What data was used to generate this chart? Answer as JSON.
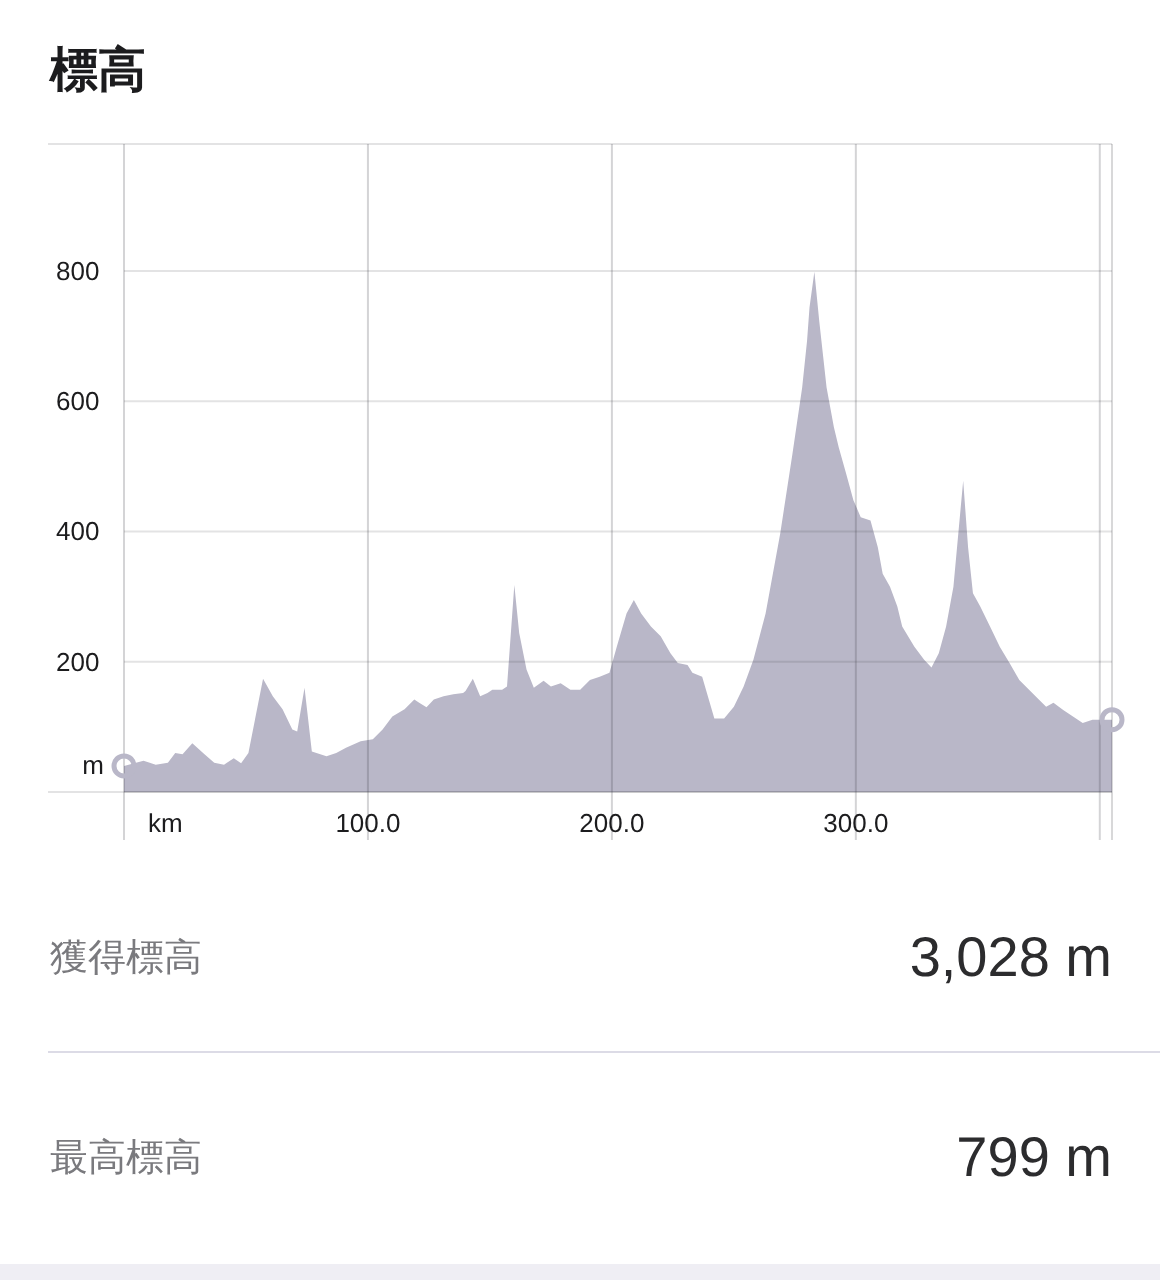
{
  "chart_data": [
    {
      "type": "area",
      "title": "標高",
      "xlabel": "km",
      "ylabel": "m",
      "series": [
        {
          "type": "area",
          "color": "#b9b7c8",
          "x": [
            0,
            8,
            13,
            18,
            21,
            24,
            28,
            33,
            37,
            41,
            45,
            48,
            51,
            57,
            61,
            65,
            69,
            71,
            74,
            77,
            83,
            87,
            91,
            97,
            102,
            106,
            110,
            115,
            119,
            121,
            124,
            127,
            131,
            135,
            139,
            140,
            143,
            146,
            149,
            151,
            155,
            157,
            160,
            162,
            165,
            168,
            172,
            175,
            179,
            183,
            187,
            191,
            195,
            199,
            202,
            206,
            209,
            212,
            216,
            220,
            224,
            227,
            231,
            233,
            237,
            242,
            246,
            250,
            254,
            258,
            263,
            269,
            274,
            278,
            280,
            281,
            283,
            285,
            288,
            291,
            293,
            296,
            299,
            302,
            306,
            309,
            311,
            314,
            317,
            319,
            324,
            328,
            331,
            334,
            337,
            340,
            342,
            344,
            346,
            348,
            351,
            355,
            359,
            363,
            367,
            371,
            375,
            378,
            381,
            385,
            389,
            393,
            397,
            405
          ],
          "values": [
            40,
            48,
            42,
            45,
            60,
            58,
            75,
            58,
            45,
            42,
            52,
            44,
            60,
            174,
            147,
            127,
            96,
            93,
            160,
            62,
            55,
            60,
            68,
            78,
            81,
            96,
            116,
            127,
            142,
            137,
            130,
            142,
            147,
            150,
            152,
            155,
            174,
            147,
            152,
            157,
            157,
            162,
            318,
            244,
            188,
            160,
            171,
            162,
            167,
            157,
            157,
            172,
            177,
            183,
            223,
            274,
            295,
            274,
            254,
            239,
            213,
            198,
            195,
            183,
            177,
            113,
            113,
            131,
            162,
            203,
            274,
            397,
            519,
            621,
            693,
            744,
            799,
            723,
            621,
            560,
            529,
            489,
            448,
            422,
            417,
            376,
            335,
            315,
            285,
            254,
            223,
            203,
            191,
            213,
            254,
            315,
            397,
            478,
            376,
            305,
            285,
            254,
            223,
            198,
            172,
            157,
            142,
            131,
            137,
            126,
            116,
            106,
            111,
            111
          ]
        },
        {
          "type": "scatter",
          "color": "#b9b7c8",
          "marker": "circle",
          "x": [
            0,
            405
          ],
          "values": [
            40,
            111
          ]
        }
      ],
      "xlim": [
        0,
        405
      ],
      "ylim": [
        0,
        995
      ],
      "xticks": [
        {
          "value": 0,
          "label": null
        },
        {
          "value": 100,
          "label": "100.0"
        },
        {
          "value": 200,
          "label": "200.0"
        },
        {
          "value": 300,
          "label": "300.0"
        },
        {
          "value": 400,
          "label": null
        }
      ],
      "yticks": [
        {
          "value": 0,
          "label": null
        },
        200,
        400,
        600,
        800
      ],
      "grid": true
    },
    {
      "type": "other",
      "annotations": [
        "獲得標高",
        "3,028 m",
        "最高標高",
        "799 m"
      ]
    }
  ]
}
